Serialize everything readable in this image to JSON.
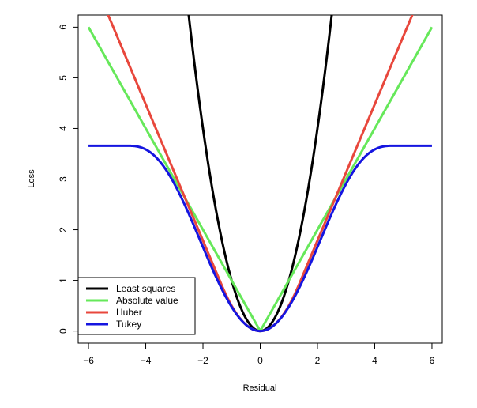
{
  "chart_data": {
    "type": "line",
    "xlabel": "Residual",
    "ylabel": "Loss",
    "xlim": [
      -6.36,
      6.36
    ],
    "ylim": [
      -0.24,
      6.24
    ],
    "xticks": [
      -6,
      -4,
      -2,
      0,
      2,
      4,
      6
    ],
    "yticks": [
      0,
      1,
      2,
      3,
      4,
      5,
      6
    ],
    "x_range": [
      -6,
      6
    ],
    "grid": false,
    "legend_position": "bottom-left",
    "series": [
      {
        "name": "Least squares",
        "color": "#000000",
        "loss": "squared"
      },
      {
        "name": "Absolute value",
        "color": "#66e85a",
        "loss": "absolute"
      },
      {
        "name": "Huber",
        "color": "#e8473c",
        "loss": "huber",
        "delta": 1.345
      },
      {
        "name": "Tukey",
        "color": "#1515e0",
        "loss": "tukey",
        "c": 4.685
      }
    ]
  }
}
